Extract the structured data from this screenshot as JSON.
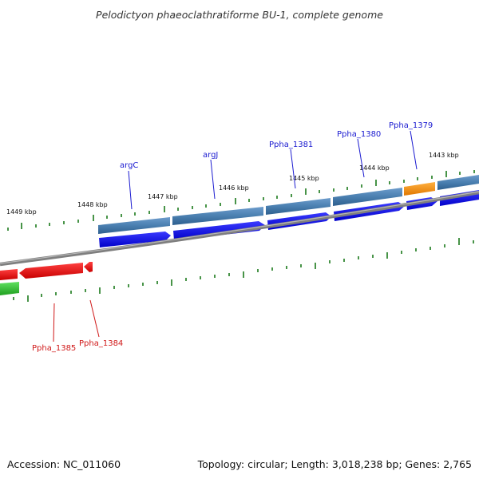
{
  "map": {
    "title": "Pelodictyon phaeoclathratiforme BU-1, complete genome",
    "accession": "Accession: NC_011060",
    "summary": "Topology: circular; Length: 3,018,238 bp; Genes: 2,765",
    "colors": {
      "backbone": "#7f7f7f",
      "feature_top": "#4a7fb0",
      "feature_top_special": "#f08c10",
      "cds_forward": "#1010e0",
      "cds_reverse": "#e81010",
      "reverse_green": "#30c030",
      "tick": "#1a7a1a",
      "label_top": "#1a1ad0",
      "label_bottom": "#d01818"
    },
    "position_labels": [
      "1449 kbp",
      "1448 kbp",
      "1447 kbp",
      "1446 kbp",
      "1445 kbp",
      "1444 kbp",
      "1443 kbp"
    ],
    "top_genes": [
      "argC",
      "argJ",
      "Ppha_1381",
      "Ppha_1380",
      "Ppha_1379"
    ],
    "bottom_genes": [
      "Ppha_1385",
      "Ppha_1384"
    ]
  }
}
